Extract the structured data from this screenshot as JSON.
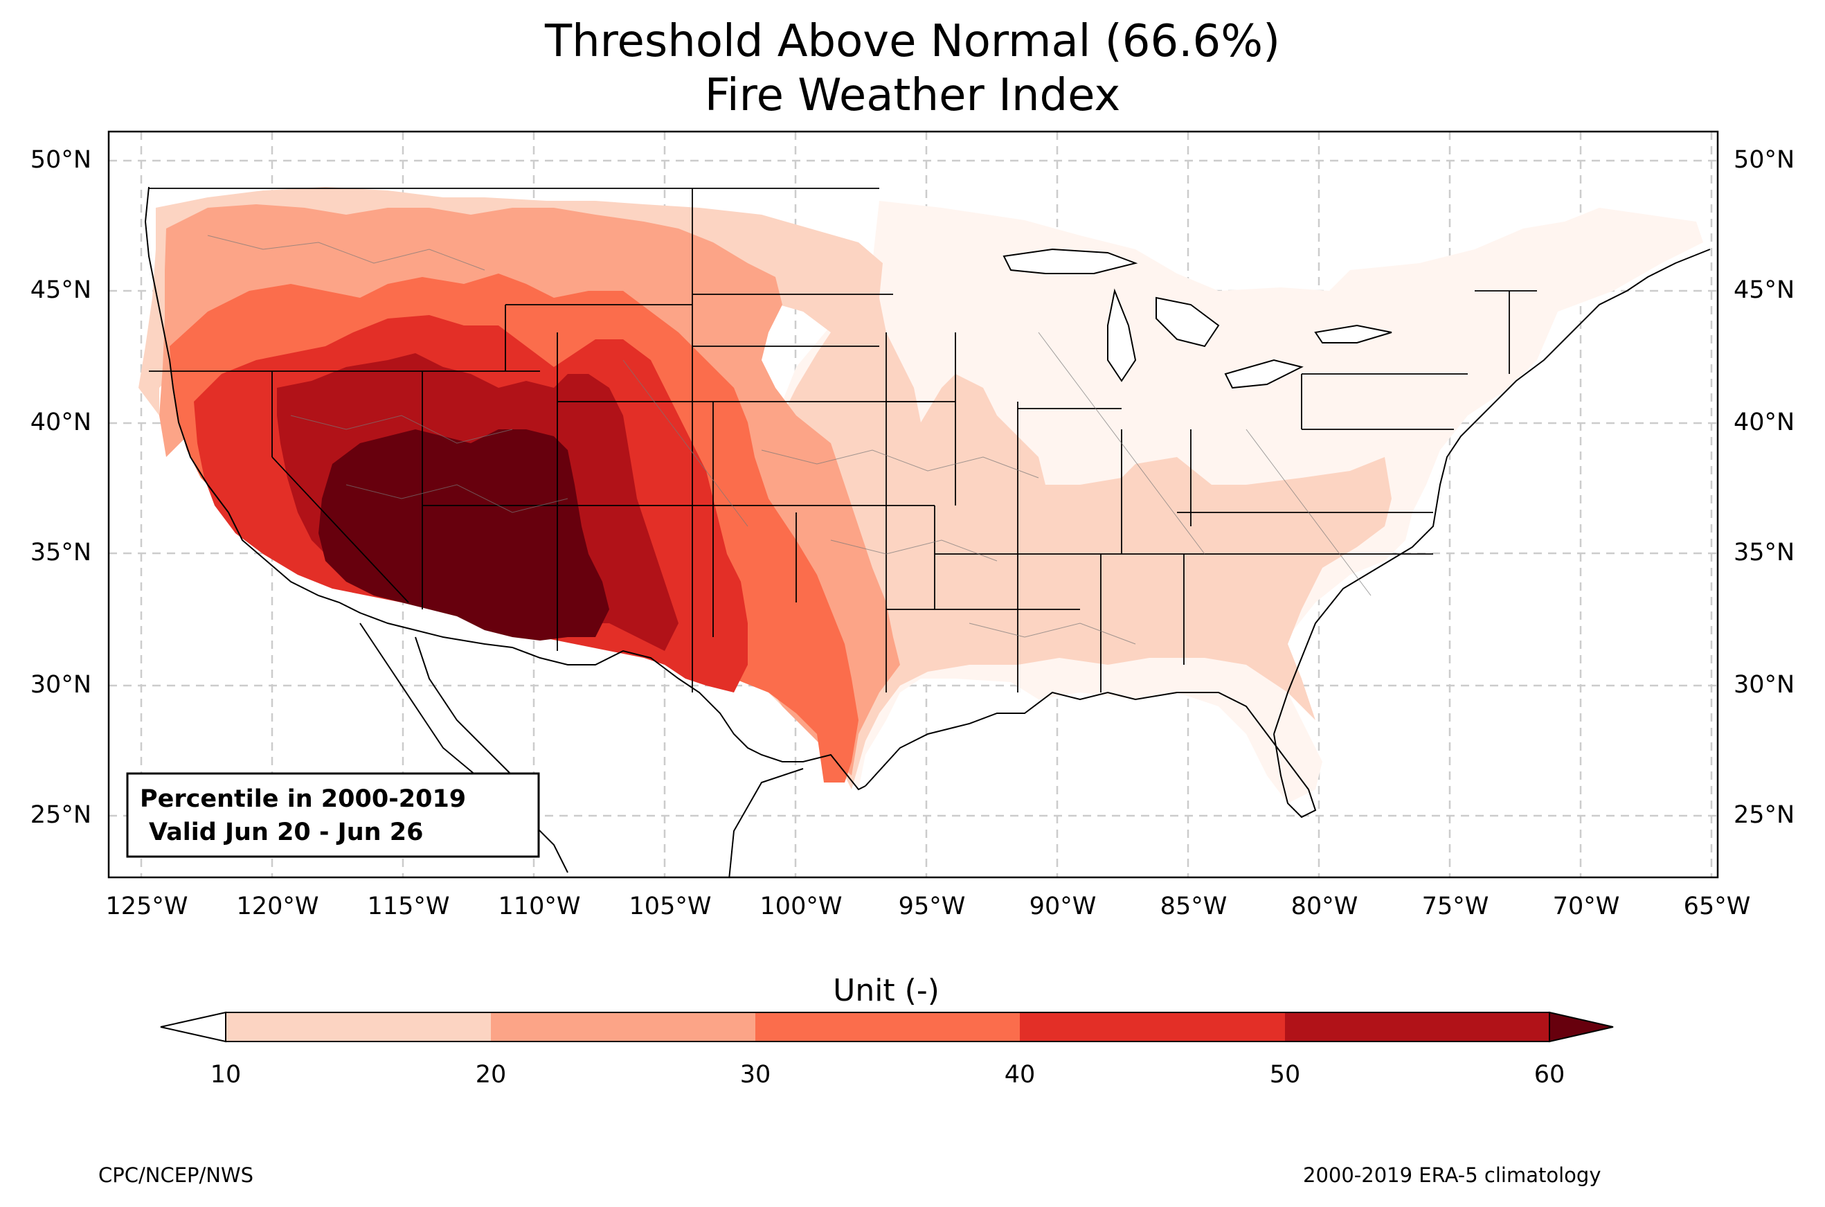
{
  "title_line1": "Threshold Above Normal (66.6%)",
  "title_line2": "Fire Weather Index",
  "info_box": {
    "line1": "Percentile in 2000-2019",
    "line2": "Valid Jun 20 - Jun 26"
  },
  "map": {
    "projection": "PlateCarree",
    "lon_range": [
      -126.3,
      -64.9
    ],
    "lat_range": [
      22.7,
      51.1
    ],
    "gridlines": "dashed light grey",
    "lat_ticks": [
      "50°N",
      "45°N",
      "40°N",
      "35°N",
      "30°N",
      "25°N"
    ],
    "lon_ticks": [
      "125°W",
      "120°W",
      "115°W",
      "110°W",
      "105°W",
      "100°W",
      "95°W",
      "90°W",
      "85°W",
      "80°W",
      "75°W",
      "70°W",
      "65°W"
    ]
  },
  "colorbar": {
    "label": "Unit (-)",
    "ticks": [
      "10",
      "20",
      "30",
      "40",
      "50",
      "60"
    ],
    "colors": [
      "#fcd4c2",
      "#fca487",
      "#fb6d4c",
      "#e32f27",
      "#b11218",
      "#67000d"
    ],
    "under_color": "#ffffff",
    "over_color": "#67000d"
  },
  "footer": {
    "left": "CPC/NCEP/NWS",
    "right": "2000-2019 ERA-5 climatology"
  }
}
